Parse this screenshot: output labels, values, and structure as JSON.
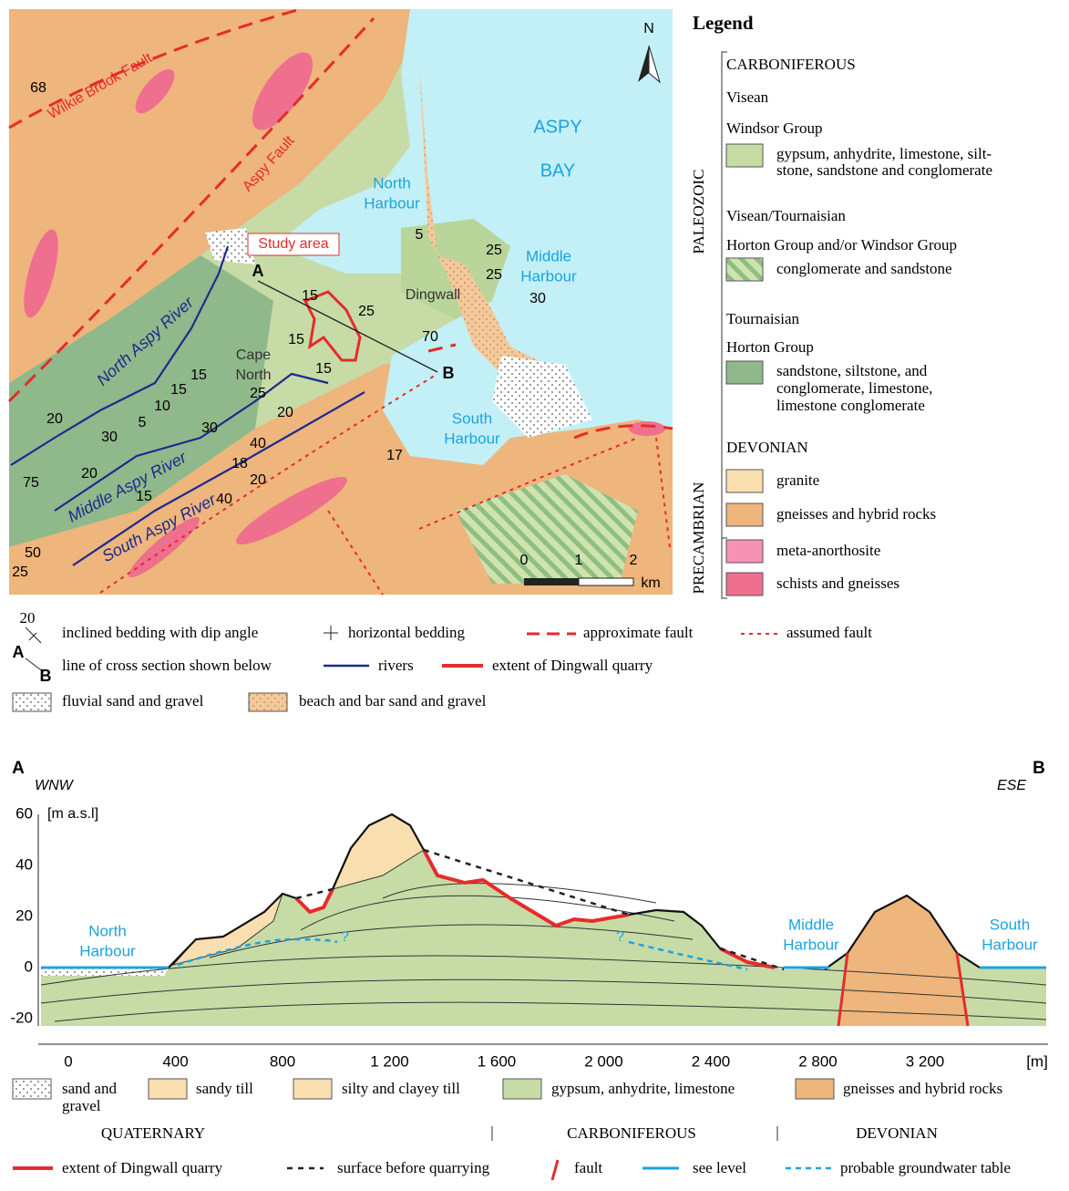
{
  "map": {
    "north": "N",
    "places": [
      "ASPY",
      "BAY",
      "North",
      "Harbour",
      "Middle",
      "Harbour",
      "South",
      "Harbour",
      "Dingwall",
      "Cape",
      "North"
    ],
    "faults": [
      "Wilkie Brook Fault",
      "Aspy Fault"
    ],
    "rivers": [
      "North Aspy River",
      "Middle Aspy River",
      "South Aspy River"
    ],
    "study_area": "Study area",
    "section_ends": [
      "A",
      "B"
    ],
    "dips": [
      "68",
      "5",
      "25",
      "25",
      "30",
      "15",
      "25",
      "15",
      "70",
      "15",
      "15",
      "15",
      "10",
      "5",
      "20",
      "30",
      "25",
      "20",
      "30",
      "40",
      "18",
      "20",
      "40",
      "75",
      "20",
      "15",
      "50",
      "25",
      "17"
    ],
    "scale": {
      "ticks": [
        "0",
        "1",
        "2"
      ],
      "unit": "km"
    }
  },
  "legend": {
    "title": "Legend",
    "entries": [
      "CARBONIFEROUS",
      "Visean",
      "Windsor Group",
      "gypsum, anhydrite, limestone, silt-",
      "stone, sandstone and conglomerate",
      "Visean/Tournaisian",
      "Horton Group and/or Windsor Group",
      "conglomerate and sandstone",
      "Tournaisian",
      "Horton Group",
      "sandstone, siltstone, and",
      "conglomerate, limestone,",
      "limestone conglomerate",
      "DEVONIAN",
      "granite",
      "gneisses and hybrid rocks",
      "meta-anorthosite",
      "schists and gneisses"
    ],
    "eras": [
      "PALEOZOIC",
      "PRECAMBRIAN"
    ]
  },
  "map_key": {
    "dip_example": "20",
    "items": [
      "inclined bedding with dip angle",
      "horizontal bedding",
      "approximate fault",
      "assumed fault",
      "line of cross section shown below",
      "rivers",
      "extent of Dingwall quarry",
      "fluvial sand and gravel",
      "beach and bar sand and gravel"
    ],
    "ends": [
      "A",
      "B"
    ]
  },
  "section": {
    "ends": [
      "A",
      "B"
    ],
    "directions": [
      "WNW",
      "ESE"
    ],
    "y_unit": "[m a.s.l]",
    "yticks": [
      "60",
      "40",
      "20",
      "0",
      "-20"
    ],
    "xticks": [
      "0",
      "400",
      "800",
      "1 200",
      "1 600",
      "2 000",
      "2 400",
      "2 800",
      "3 200"
    ],
    "x_unit": "[m]",
    "places": [
      "North",
      "Harbour",
      "Middle",
      "Harbour",
      "South",
      "Harbour"
    ],
    "unknown": [
      "?",
      "?"
    ]
  },
  "section_key": {
    "units": [
      "sand and",
      "gravel",
      "sandy till",
      "silty and clayey till",
      "gypsum, anhydrite, limestone",
      "gneisses and hybrid rocks"
    ],
    "periods": [
      "QUATERNARY",
      "CARBONIFEROUS",
      "DEVONIAN"
    ],
    "lines": [
      "extent of Dingwall quarry",
      "surface before quarrying",
      "fault",
      "see level",
      "probable  groundwater table"
    ]
  }
}
